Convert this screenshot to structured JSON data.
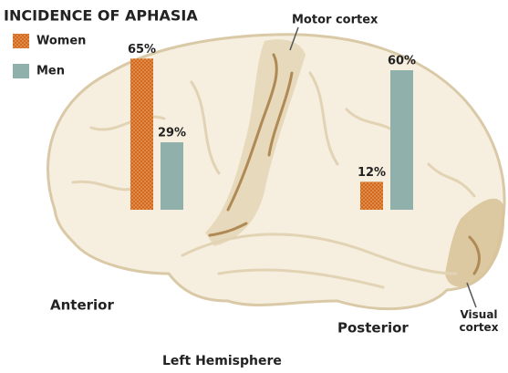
{
  "chart_data": {
    "type": "bar",
    "title": "INCIDENCE OF APHASIA",
    "categories": [
      "Anterior",
      "Posterior"
    ],
    "series": [
      {
        "name": "Women",
        "color": "#d2691e",
        "values": [
          65,
          12
        ],
        "value_labels": [
          "65%",
          "12%"
        ]
      },
      {
        "name": "Men",
        "color": "#8fb0ab",
        "values": [
          29,
          60
        ],
        "value_labels": [
          "29%",
          "60%"
        ]
      }
    ],
    "annotations": {
      "motor": "Motor cortex",
      "visual": "Visual cortex"
    },
    "caption": "Left Hemisphere"
  }
}
